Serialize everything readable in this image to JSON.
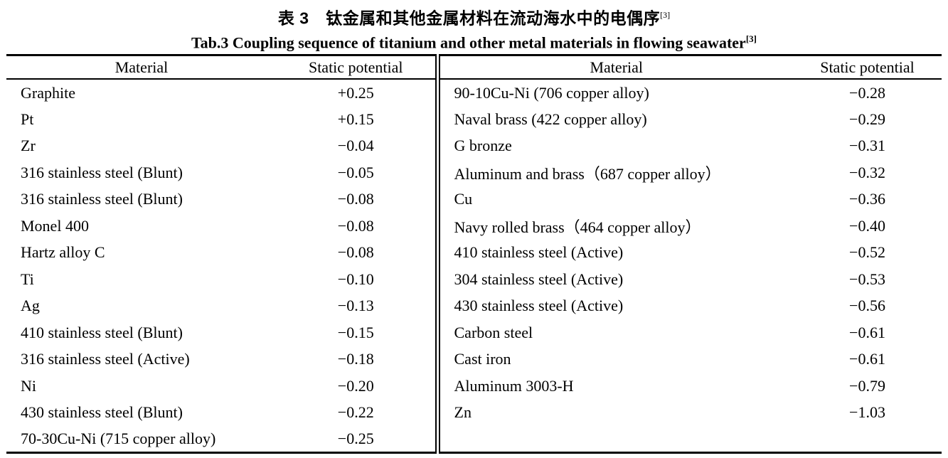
{
  "caption": {
    "chinese": "表 3　钛金属和其他金属材料在流动海水中的电偶序",
    "chinese_ref": "[3]",
    "english": "Tab.3 Coupling sequence of titanium and other metal materials in flowing seawater",
    "english_ref": "[3]"
  },
  "table": {
    "header": {
      "material": "Material",
      "static_potential": "Static potential"
    },
    "left_rows": [
      {
        "material": "Graphite",
        "potential": "+0.25"
      },
      {
        "material": "Pt",
        "potential": "+0.15"
      },
      {
        "material": "Zr",
        "potential": "−0.04"
      },
      {
        "material": "316 stainless steel (Blunt)",
        "potential": "−0.05"
      },
      {
        "material": "316 stainless steel (Blunt)",
        "potential": "−0.08"
      },
      {
        "material": "Monel 400",
        "potential": "−0.08"
      },
      {
        "material": "Hartz alloy C",
        "potential": "−0.08"
      },
      {
        "material": "Ti",
        "potential": "−0.10"
      },
      {
        "material": "Ag",
        "potential": "−0.13"
      },
      {
        "material": "410 stainless steel (Blunt)",
        "potential": "−0.15"
      },
      {
        "material": "316 stainless steel (Active)",
        "potential": "−0.18"
      },
      {
        "material": "Ni",
        "potential": "−0.20"
      },
      {
        "material": "430 stainless steel (Blunt)",
        "potential": "−0.22"
      },
      {
        "material": "70-30Cu-Ni (715 copper alloy)",
        "potential": "−0.25"
      }
    ],
    "right_rows": [
      {
        "material": "90-10Cu-Ni (706 copper alloy)",
        "potential": "−0.28"
      },
      {
        "material": "Naval brass (422 copper alloy)",
        "potential": "−0.29"
      },
      {
        "material": "G bronze",
        "potential": "−0.31"
      },
      {
        "material": "Aluminum and brass（687 copper alloy）",
        "potential": "−0.32"
      },
      {
        "material": "Cu",
        "potential": "−0.36"
      },
      {
        "material": "Navy rolled brass（464 copper alloy）",
        "potential": "−0.40"
      },
      {
        "material": "410 stainless steel (Active)",
        "potential": "−0.52"
      },
      {
        "material": "304 stainless steel (Active)",
        "potential": "−0.53"
      },
      {
        "material": "430 stainless steel (Active)",
        "potential": "−0.56"
      },
      {
        "material": "Carbon steel",
        "potential": "−0.61"
      },
      {
        "material": "Cast iron",
        "potential": "−0.61"
      },
      {
        "material": "Aluminum 3003-H",
        "potential": "−0.79"
      },
      {
        "material": "Zn",
        "potential": "−1.03"
      }
    ]
  }
}
